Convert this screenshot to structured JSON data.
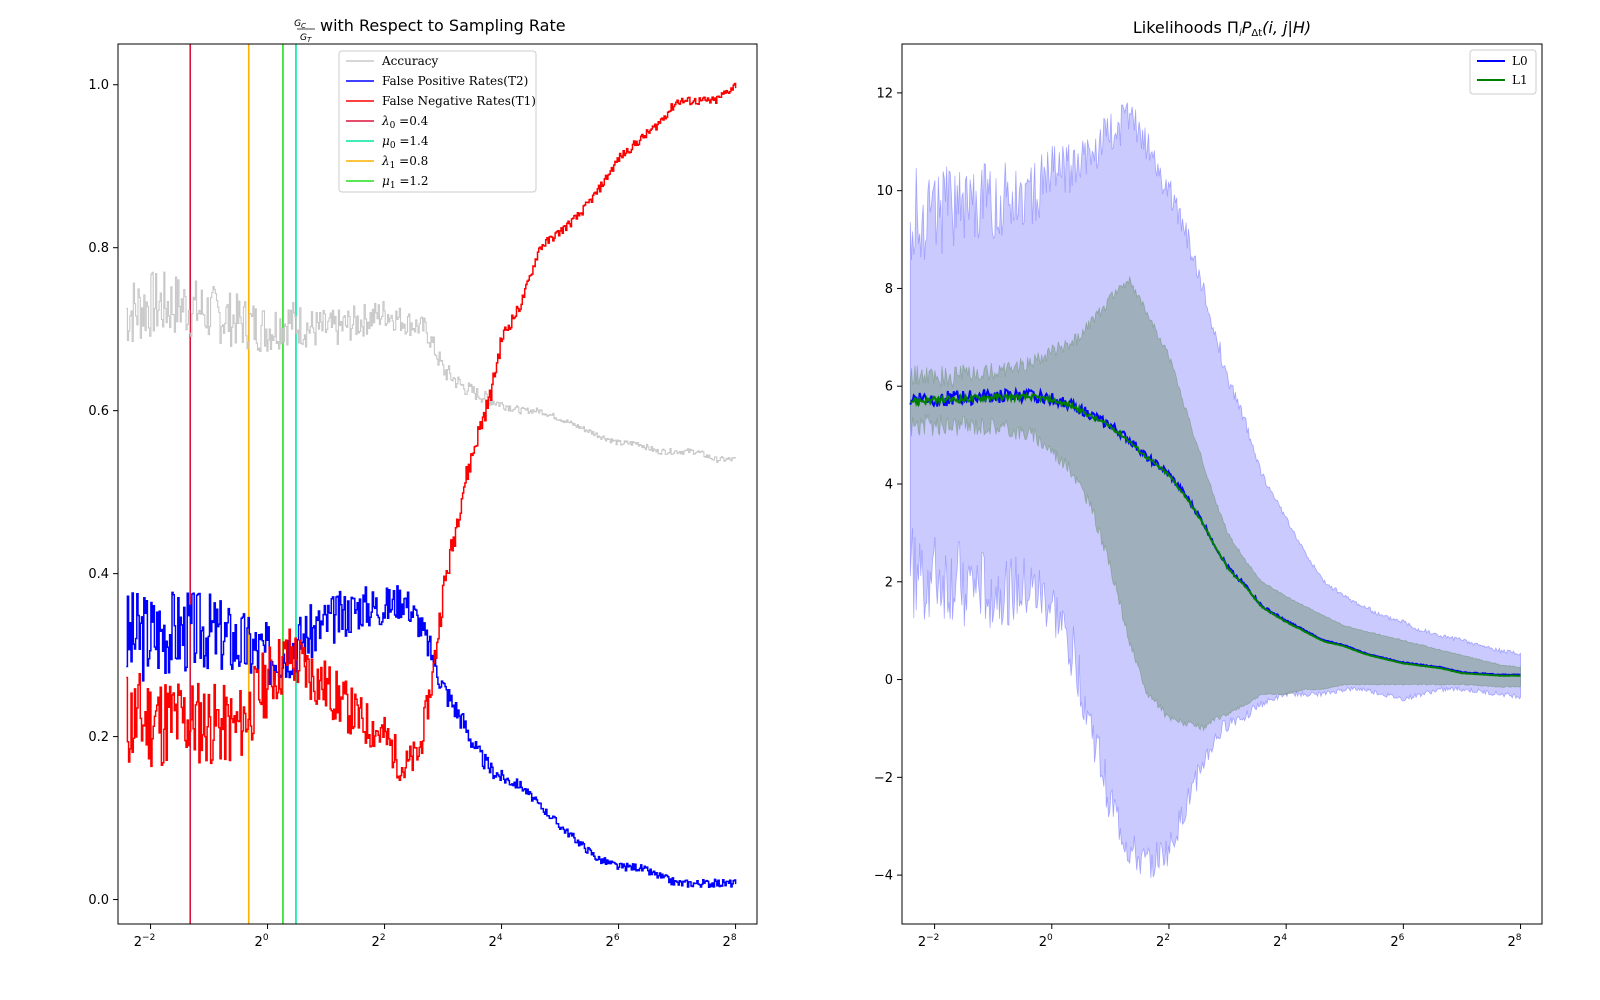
{
  "chart_data": [
    {
      "type": "line",
      "title_frac_num": "G",
      "title_frac_num_sub": "C",
      "title_frac_den": "G",
      "title_frac_den_sub": "T",
      "title_text": " with Respect to Sampling Rate",
      "xscale": "log2",
      "xlim": [
        0.17,
        330
      ],
      "ylim": [
        -0.03,
        1.05
      ],
      "xticks": [
        {
          "value": 0.25,
          "base": "2",
          "exp": "−2"
        },
        {
          "value": 1,
          "base": "2",
          "exp": "0"
        },
        {
          "value": 4,
          "base": "2",
          "exp": "2"
        },
        {
          "value": 16,
          "base": "2",
          "exp": "4"
        },
        {
          "value": 64,
          "base": "2",
          "exp": "6"
        },
        {
          "value": 256,
          "base": "2",
          "exp": "8"
        }
      ],
      "yticks": [
        {
          "value": 0.0,
          "label": "0.0"
        },
        {
          "value": 0.2,
          "label": "0.2"
        },
        {
          "value": 0.4,
          "label": "0.4"
        },
        {
          "value": 0.6,
          "label": "0.6"
        },
        {
          "value": 0.8,
          "label": "0.8"
        },
        {
          "value": 1.0,
          "label": "1.0"
        }
      ],
      "legend_position": "upper center",
      "series": [
        {
          "name": "Accuracy",
          "color": "#c8c8c8",
          "noise": 0.045,
          "seed": 7,
          "x": [
            0.1875,
            0.25,
            0.35,
            0.5,
            0.7,
            1.0,
            1.3,
            1.7,
            2.2,
            3.0,
            4.0,
            5.0,
            6.5,
            8.0,
            10,
            12,
            15,
            20,
            25,
            32,
            40,
            50,
            64,
            80,
            100,
            128,
            160,
            200,
            256
          ],
          "y": [
            0.72,
            0.73,
            0.73,
            0.72,
            0.71,
            0.7,
            0.71,
            0.7,
            0.7,
            0.71,
            0.72,
            0.71,
            0.7,
            0.65,
            0.63,
            0.62,
            0.61,
            0.6,
            0.6,
            0.59,
            0.58,
            0.57,
            0.56,
            0.56,
            0.55,
            0.55,
            0.55,
            0.54,
            0.54
          ]
        },
        {
          "name": "False Positive Rates(T2)",
          "color": "#0000ff",
          "noise": 0.06,
          "seed": 3,
          "x": [
            0.1875,
            0.3,
            0.5,
            1.0,
            1.3,
            2.0,
            3.0,
            4.0,
            5.0,
            6.0,
            7.0,
            8.0,
            10,
            12,
            14,
            16,
            20,
            24,
            32,
            40,
            50,
            64,
            80,
            100,
            128,
            256
          ],
          "y": [
            0.32,
            0.33,
            0.33,
            0.3,
            0.31,
            0.34,
            0.36,
            0.36,
            0.37,
            0.34,
            0.3,
            0.26,
            0.22,
            0.18,
            0.16,
            0.15,
            0.14,
            0.12,
            0.09,
            0.07,
            0.05,
            0.04,
            0.04,
            0.03,
            0.02,
            0.02
          ]
        },
        {
          "name": "False Negative Rates(T1)",
          "color": "#ff0000",
          "noise": 0.065,
          "seed": 11,
          "x": [
            0.1875,
            0.4,
            0.7,
            1.0,
            1.3,
            2.0,
            3.0,
            4.0,
            5.0,
            6.0,
            7.0,
            8.0,
            9.0,
            10,
            12,
            14,
            16,
            20,
            25,
            32,
            40,
            50,
            64,
            80,
            100,
            128,
            200,
            256
          ],
          "y": [
            0.22,
            0.22,
            0.21,
            0.27,
            0.3,
            0.26,
            0.22,
            0.2,
            0.16,
            0.18,
            0.27,
            0.38,
            0.44,
            0.5,
            0.57,
            0.62,
            0.69,
            0.73,
            0.8,
            0.82,
            0.84,
            0.87,
            0.91,
            0.93,
            0.95,
            0.98,
            0.98,
            1.0
          ]
        }
      ],
      "vlines": [
        {
          "symbol": "λ",
          "sub": "0",
          "label": " =0.4",
          "x": 0.4,
          "color": "#dc143c"
        },
        {
          "symbol": "μ",
          "sub": "0",
          "label": " =1.4",
          "x": 1.4,
          "color": "#00e6a0"
        },
        {
          "symbol": "λ",
          "sub": "1",
          "label": " =0.8",
          "x": 0.8,
          "color": "#ffb000"
        },
        {
          "symbol": "μ",
          "sub": "1",
          "label": " =1.2",
          "x": 1.2,
          "color": "#22dd22"
        }
      ]
    },
    {
      "type": "area",
      "title_text": "Likelihoods Π",
      "title_sub1": "i",
      "title_mid": "P",
      "title_sub2": "Δt",
      "title_tail": "(i, j|H)",
      "xscale": "log2",
      "xlim": [
        0.17,
        330
      ],
      "ylim": [
        -5,
        13
      ],
      "xticks": [
        {
          "value": 0.25,
          "base": "2",
          "exp": "−2"
        },
        {
          "value": 1,
          "base": "2",
          "exp": "0"
        },
        {
          "value": 4,
          "base": "2",
          "exp": "2"
        },
        {
          "value": 16,
          "base": "2",
          "exp": "4"
        },
        {
          "value": 64,
          "base": "2",
          "exp": "6"
        },
        {
          "value": 256,
          "base": "2",
          "exp": "8"
        }
      ],
      "yticks": [
        {
          "value": -4,
          "label": "−4"
        },
        {
          "value": -2,
          "label": "−2"
        },
        {
          "value": 0,
          "label": "0"
        },
        {
          "value": 2,
          "label": "2"
        },
        {
          "value": 4,
          "label": "4"
        },
        {
          "value": 6,
          "label": "6"
        },
        {
          "value": 8,
          "label": "8"
        },
        {
          "value": 10,
          "label": "10"
        },
        {
          "value": 12,
          "label": "12"
        }
      ],
      "legend_position": "upper right",
      "series": [
        {
          "name": "L0",
          "color": "#0000ff",
          "x": [
            0.1875,
            0.3,
            0.5,
            0.8,
            1.0,
            1.3,
            1.6,
            2.0,
            2.5,
            3.0,
            4.0,
            5.0,
            6.0,
            7.0,
            8.0,
            10,
            12,
            16,
            20,
            25,
            32,
            40,
            50,
            64,
            80,
            100,
            128,
            200,
            256
          ],
          "y": [
            5.75,
            5.75,
            5.8,
            5.8,
            5.75,
            5.6,
            5.4,
            5.2,
            4.9,
            4.6,
            4.2,
            3.7,
            3.2,
            2.7,
            2.3,
            1.9,
            1.5,
            1.2,
            1.0,
            0.8,
            0.7,
            0.55,
            0.45,
            0.35,
            0.3,
            0.25,
            0.15,
            0.1,
            0.1
          ],
          "band_upper": [
            9.5,
            9.6,
            9.8,
            10.0,
            10.3,
            10.5,
            10.8,
            11.2,
            11.5,
            11.0,
            10.0,
            9.0,
            8.0,
            7.0,
            6.2,
            5.2,
            4.2,
            3.3,
            2.6,
            2.0,
            1.7,
            1.5,
            1.3,
            1.2,
            1.0,
            0.9,
            0.8,
            0.6,
            0.5
          ],
          "band_lower": [
            2.2,
            2.0,
            1.8,
            1.8,
            1.5,
            0.5,
            -1.0,
            -2.5,
            -3.5,
            -3.8,
            -3.5,
            -2.5,
            -1.7,
            -1.2,
            -0.9,
            -0.7,
            -0.5,
            -0.3,
            -0.3,
            -0.3,
            -0.2,
            -0.2,
            -0.3,
            -0.4,
            -0.3,
            -0.2,
            -0.2,
            -0.3,
            -0.35
          ]
        },
        {
          "name": "L1",
          "color": "#008000",
          "x": [
            0.1875,
            0.3,
            0.5,
            0.8,
            1.0,
            1.3,
            1.6,
            2.0,
            2.5,
            3.0,
            4.0,
            5.0,
            6.0,
            7.0,
            8.0,
            10,
            12,
            16,
            20,
            25,
            32,
            40,
            50,
            64,
            80,
            100,
            128,
            200,
            256
          ],
          "y": [
            5.7,
            5.72,
            5.78,
            5.78,
            5.72,
            5.58,
            5.38,
            5.18,
            4.88,
            4.58,
            4.18,
            3.68,
            3.18,
            2.68,
            2.28,
            1.88,
            1.48,
            1.18,
            0.98,
            0.78,
            0.68,
            0.53,
            0.43,
            0.33,
            0.28,
            0.23,
            0.13,
            0.08,
            0.08
          ],
          "band_upper": [
            6.2,
            6.2,
            6.3,
            6.5,
            6.7,
            6.9,
            7.3,
            7.8,
            8.2,
            7.6,
            6.6,
            5.4,
            4.4,
            3.6,
            3.0,
            2.4,
            2.0,
            1.7,
            1.5,
            1.3,
            1.1,
            1.0,
            0.9,
            0.8,
            0.7,
            0.6,
            0.5,
            0.3,
            0.25
          ],
          "band_lower": [
            5.2,
            5.2,
            5.2,
            5.0,
            4.7,
            4.2,
            3.5,
            2.3,
            0.8,
            -0.2,
            -0.8,
            -0.9,
            -1.0,
            -0.8,
            -0.7,
            -0.5,
            -0.3,
            -0.3,
            -0.2,
            -0.2,
            -0.1,
            -0.1,
            -0.1,
            -0.1,
            -0.1,
            -0.1,
            -0.1,
            -0.15,
            -0.15
          ]
        }
      ]
    }
  ]
}
